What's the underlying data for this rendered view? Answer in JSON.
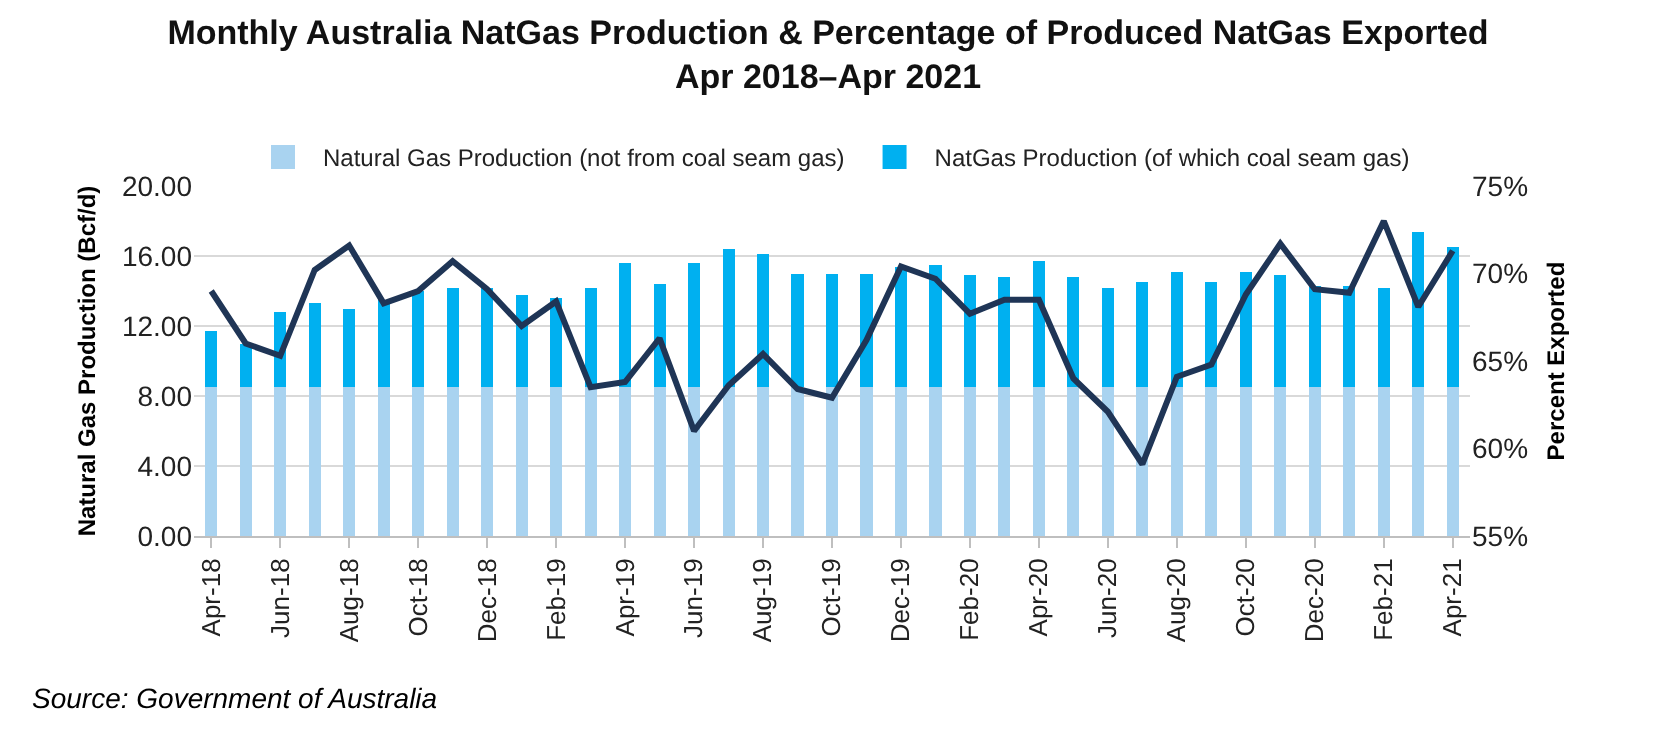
{
  "chart_data": {
    "type": "bar",
    "title": "Monthly Australia NatGas Production & Percentage of Produced NatGas Exported\nApr 2018–Apr 2021",
    "ylabel": "Natural Gas Production (Bcf/d)",
    "y2label": "Percent Exported",
    "categories": [
      "Apr-18",
      null,
      "Jun-18",
      null,
      "Aug-18",
      null,
      "Oct-18",
      null,
      "Dec-18",
      null,
      "Feb-19",
      null,
      "Apr-19",
      null,
      "Jun-19",
      null,
      "Aug-19",
      null,
      "Oct-19",
      null,
      "Dec-19",
      null,
      "Feb-20",
      null,
      "Apr-20",
      null,
      "Jun-20",
      null,
      "Aug-20",
      null,
      "Oct-20",
      null,
      "Dec-20",
      null,
      "Feb-21",
      null,
      "Apr-21"
    ],
    "stacked": true,
    "series": [
      {
        "name": "Natural Gas Production (not from coal seam gas)",
        "color": "#a9d3f0",
        "values": [
          8.5,
          8.5,
          8.5,
          8.5,
          8.5,
          8.5,
          8.5,
          8.5,
          8.5,
          8.5,
          8.5,
          8.5,
          8.5,
          8.5,
          8.5,
          8.5,
          8.5,
          8.5,
          8.5,
          8.5,
          8.5,
          8.5,
          8.5,
          8.5,
          8.5,
          8.5,
          8.5,
          8.5,
          8.5,
          8.5,
          8.5,
          8.5,
          8.5,
          8.5,
          8.5,
          8.5,
          8.5
        ]
      },
      {
        "name": "NatGas Production (of which coal seam gas)",
        "color": "#00b0f0",
        "values": [
          3.2,
          2.5,
          4.3,
          4.8,
          4.5,
          5.0,
          5.5,
          5.7,
          5.7,
          5.3,
          5.1,
          5.7,
          7.1,
          5.9,
          7.1,
          7.9,
          7.6,
          6.5,
          6.5,
          6.5,
          6.9,
          7.0,
          6.4,
          6.3,
          7.2,
          6.3,
          5.7,
          6.0,
          6.6,
          6.0,
          6.6,
          6.4,
          5.8,
          5.8,
          5.7,
          8.9,
          8.0
        ]
      },
      {
        "type": "line",
        "axis": "y2",
        "color": "#1f3556",
        "values": [
          69.0,
          66.0,
          65.3,
          70.2,
          71.6,
          68.3,
          69.0,
          70.7,
          69.1,
          67.0,
          68.4,
          63.5,
          63.8,
          66.3,
          61.0,
          63.6,
          65.4,
          63.4,
          62.9,
          66.2,
          70.4,
          69.7,
          67.7,
          68.5,
          68.5,
          64.0,
          62.1,
          59.1,
          64.1,
          64.8,
          68.8,
          71.7,
          69.1,
          68.9,
          73.0,
          68.1,
          71.3
        ]
      }
    ],
    "ylim": [
      0,
      20
    ],
    "yticks": [
      {
        "value": 0,
        "label": "0.00"
      },
      {
        "value": 4,
        "label": "4.00"
      },
      {
        "value": 8,
        "label": "8.00"
      },
      {
        "value": 12,
        "label": "12.00"
      },
      {
        "value": 16,
        "label": "16.00"
      },
      {
        "value": 20,
        "label": "20.00"
      }
    ],
    "y2lim": [
      55,
      75
    ],
    "y2ticks": [
      {
        "value": 55,
        "label": "55%"
      },
      {
        "value": 60,
        "label": "60%"
      },
      {
        "value": 65,
        "label": "65%"
      },
      {
        "value": 70,
        "label": "70%"
      },
      {
        "value": 75,
        "label": "75%"
      }
    ],
    "grid": "y",
    "legend": "top",
    "marker": "none",
    "line_style": "solid",
    "annotations": [
      "Source: Government of Australia"
    ]
  }
}
